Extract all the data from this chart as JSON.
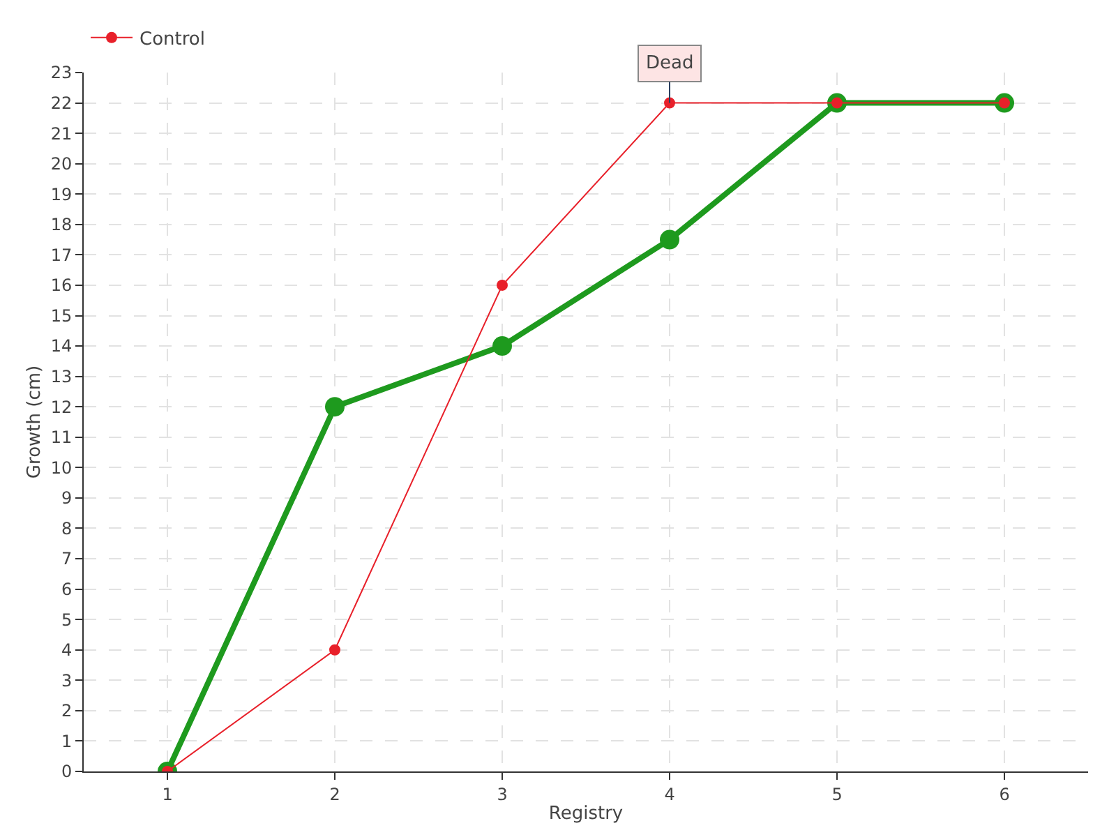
{
  "chart_data": {
    "type": "line",
    "xlabel": "Registry",
    "ylabel": "Growth (cm)",
    "x": [
      1,
      2,
      3,
      4,
      5,
      6
    ],
    "series": [
      {
        "color": "#1e9a1e",
        "values": [
          0,
          12,
          14,
          17.5,
          22,
          22
        ]
      },
      {
        "name": "Control",
        "color": "#e8202a",
        "values": [
          0,
          4,
          16,
          22,
          22,
          22
        ]
      }
    ],
    "xlim": [
      0.5,
      6.5
    ],
    "xticks": [
      1,
      2,
      3,
      4,
      5,
      6
    ],
    "ylim": [
      0,
      23
    ],
    "yticks": [
      0,
      1,
      2,
      3,
      4,
      5,
      6,
      7,
      8,
      9,
      10,
      11,
      12,
      13,
      14,
      15,
      16,
      17,
      18,
      19,
      20,
      21,
      22,
      23
    ],
    "annotations": [
      {
        "text": "Dead",
        "x": 4,
        "y": 22
      }
    ],
    "grid": true,
    "legend": "top left",
    "marker": "circle",
    "line_style": "solid"
  }
}
